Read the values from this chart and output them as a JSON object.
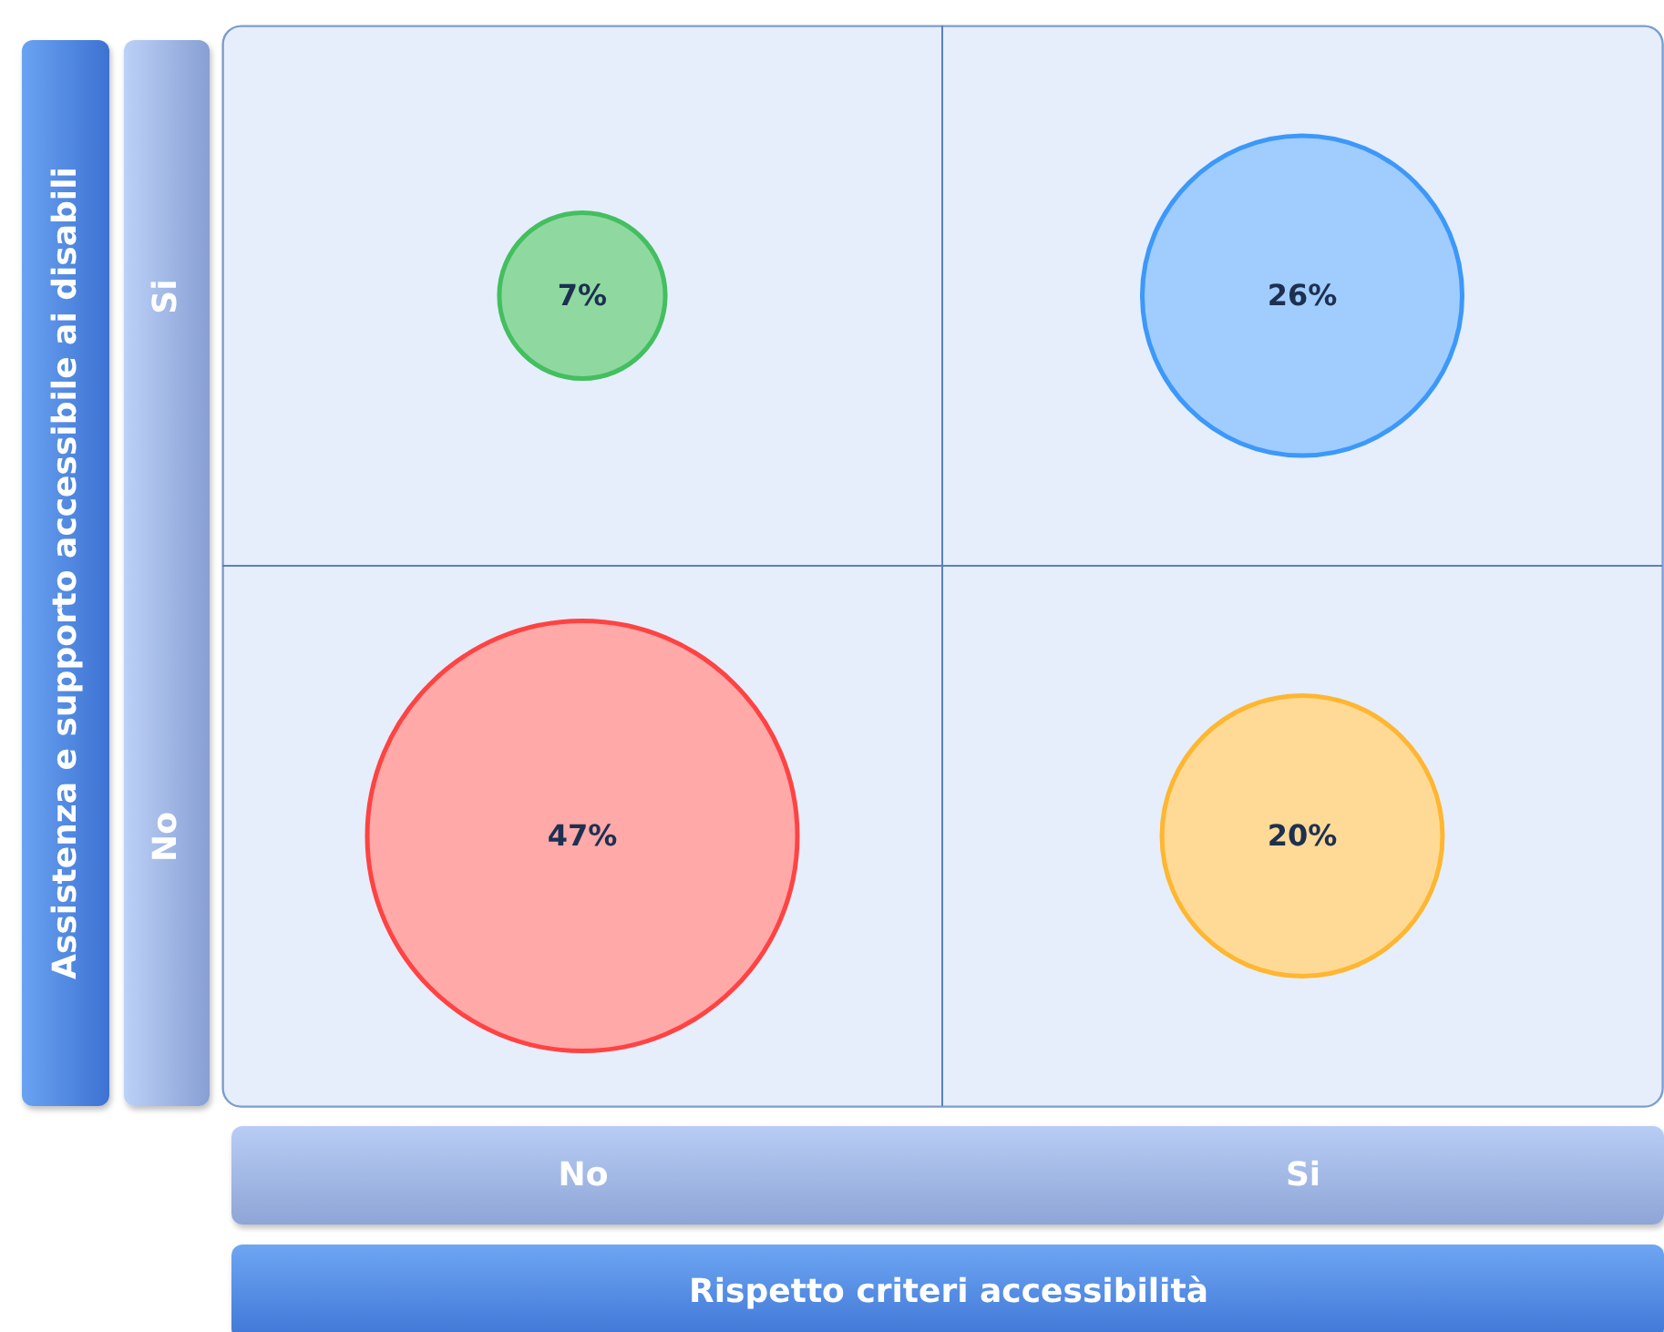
{
  "chart_data": {
    "type": "other",
    "xlabel": "Rispetto criteri accessibilità",
    "ylabel": "Assistenza e supporto accessibile ai disabili",
    "categories": [
      "No",
      "Si"
    ],
    "y_categories": [
      "Si",
      "No"
    ],
    "series": [
      {
        "values": [
          7,
          26
        ],
        "value_labels": [
          "7%",
          "26%"
        ],
        "colors": [
          "#8fd9a0",
          "#a0cdfd"
        ]
      },
      {
        "values": [
          47,
          20
        ],
        "value_labels": [
          "47%",
          "20%"
        ],
        "colors": [
          "#ffa9a9",
          "#ffda96"
        ]
      }
    ]
  }
}
